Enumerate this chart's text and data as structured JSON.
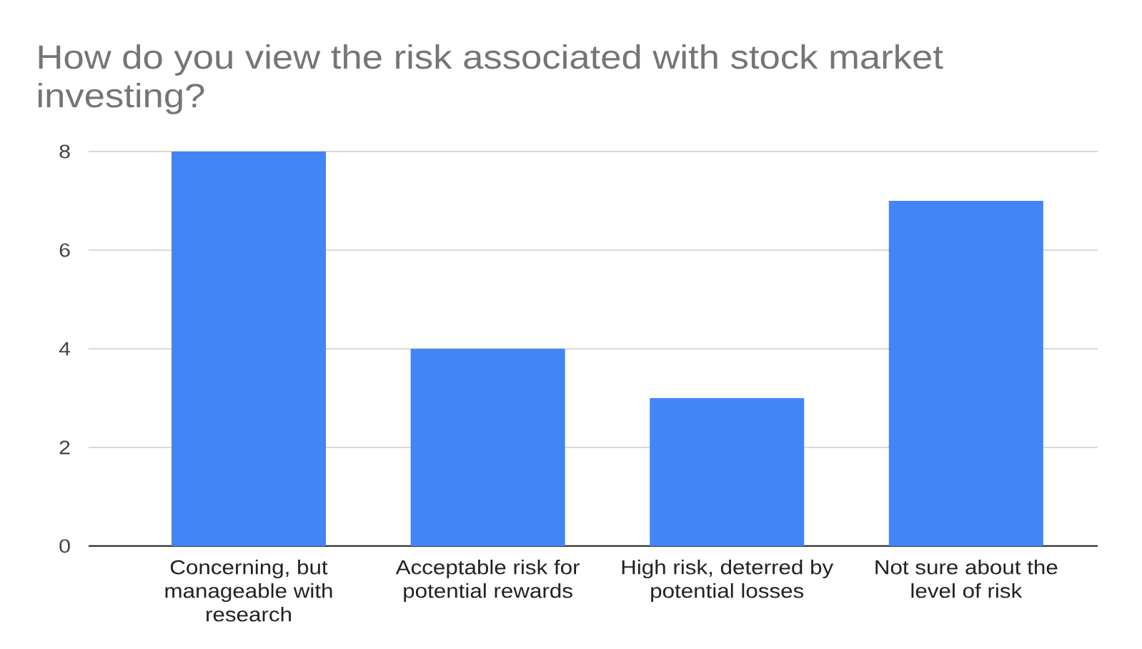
{
  "chart_data": {
    "type": "bar",
    "title": "How do you view the risk associated with stock market investing?",
    "categories": [
      "Concerning, but manageable with research",
      "Acceptable risk for potential rewards",
      "High risk, deterred by potential losses",
      "Not sure about the level of risk"
    ],
    "values": [
      8,
      4,
      3,
      7
    ],
    "color": "#4285f4",
    "ylim": [
      0,
      8
    ],
    "yticks": [
      0,
      2,
      4,
      6,
      8
    ],
    "grid": "y"
  }
}
